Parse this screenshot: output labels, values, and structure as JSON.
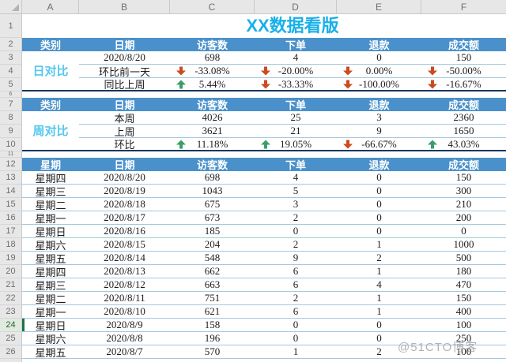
{
  "title": "XX数据看版",
  "watermark": "@51CTO博客",
  "colors": {
    "header_blue": "#4a91cc",
    "title_cyan": "#18b0e8",
    "category_cyan": "#55c7ef",
    "up_green": "#3a9e68",
    "down_red": "#cc4a21",
    "row_line": "#a5c8e1",
    "section_line": "#17375e",
    "active_green": "#1e7145"
  },
  "grid": {
    "col_letters": [
      "A",
      "B",
      "C",
      "D",
      "E",
      "F"
    ],
    "row_numbers": [
      "1",
      "2",
      "3",
      "4",
      "5",
      "6",
      "7",
      "8",
      "9",
      "10",
      "11",
      "12",
      "13",
      "14",
      "15",
      "16",
      "17",
      "18",
      "19",
      "20",
      "21",
      "22",
      "23",
      "24",
      "25",
      "26"
    ]
  },
  "day": {
    "category": "日对比",
    "headers": [
      "类别",
      "日期",
      "访客数",
      "下单",
      "退款",
      "成交额"
    ],
    "rows": [
      {
        "label": "2020/8/20",
        "cells": [
          {
            "v": "698"
          },
          {
            "v": "4"
          },
          {
            "v": "0"
          },
          {
            "v": "150"
          }
        ]
      },
      {
        "label": "环比前一天",
        "cells": [
          {
            "v": "-33.08%",
            "a": "down"
          },
          {
            "v": "-20.00%",
            "a": "down"
          },
          {
            "v": "0.00%",
            "a": "down"
          },
          {
            "v": "-50.00%",
            "a": "down"
          }
        ]
      },
      {
        "label": "同比上周",
        "cells": [
          {
            "v": "5.44%",
            "a": "up"
          },
          {
            "v": "-33.33%",
            "a": "down"
          },
          {
            "v": "-100.00%",
            "a": "down"
          },
          {
            "v": "-16.67%",
            "a": "down"
          }
        ]
      }
    ]
  },
  "week": {
    "category": "周对比",
    "headers": [
      "类别",
      "日期",
      "访客数",
      "下单",
      "退款",
      "成交额"
    ],
    "rows": [
      {
        "label": "本周",
        "cells": [
          {
            "v": "4026"
          },
          {
            "v": "25"
          },
          {
            "v": "3"
          },
          {
            "v": "2360"
          }
        ]
      },
      {
        "label": "上周",
        "cells": [
          {
            "v": "3621"
          },
          {
            "v": "21"
          },
          {
            "v": "9"
          },
          {
            "v": "1650"
          }
        ]
      },
      {
        "label": "环比",
        "cells": [
          {
            "v": "11.18%",
            "a": "up"
          },
          {
            "v": "19.05%",
            "a": "up"
          },
          {
            "v": "-66.67%",
            "a": "down"
          },
          {
            "v": "43.03%",
            "a": "up"
          }
        ]
      }
    ]
  },
  "daily": {
    "headers": [
      "星期",
      "日期",
      "访客数",
      "下单",
      "退款",
      "成交额"
    ],
    "rows": [
      [
        "星期四",
        "2020/8/20",
        "698",
        "4",
        "0",
        "150"
      ],
      [
        "星期三",
        "2020/8/19",
        "1043",
        "5",
        "0",
        "300"
      ],
      [
        "星期二",
        "2020/8/18",
        "675",
        "3",
        "0",
        "210"
      ],
      [
        "星期一",
        "2020/8/17",
        "673",
        "2",
        "0",
        "200"
      ],
      [
        "星期日",
        "2020/8/16",
        "185",
        "0",
        "0",
        "0"
      ],
      [
        "星期六",
        "2020/8/15",
        "204",
        "2",
        "1",
        "1000"
      ],
      [
        "星期五",
        "2020/8/14",
        "548",
        "9",
        "2",
        "500"
      ],
      [
        "星期四",
        "2020/8/13",
        "662",
        "6",
        "1",
        "180"
      ],
      [
        "星期三",
        "2020/8/12",
        "663",
        "6",
        "4",
        "470"
      ],
      [
        "星期二",
        "2020/8/11",
        "751",
        "2",
        "1",
        "150"
      ],
      [
        "星期一",
        "2020/8/10",
        "621",
        "6",
        "1",
        "400"
      ],
      [
        "星期日",
        "2020/8/9",
        "158",
        "0",
        "0",
        "100"
      ],
      [
        "星期六",
        "2020/8/8",
        "196",
        "0",
        "0",
        "250"
      ],
      [
        "星期五",
        "2020/8/7",
        "570",
        "1",
        "2",
        "100"
      ]
    ]
  }
}
